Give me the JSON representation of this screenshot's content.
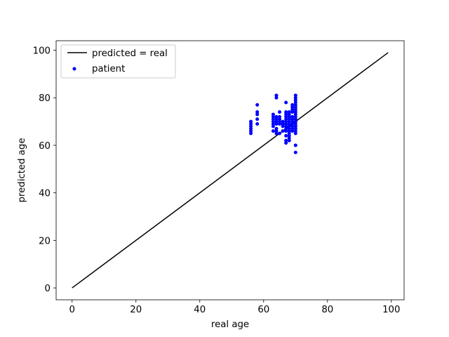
{
  "chart_data": {
    "type": "scatter",
    "title": "",
    "xlabel": "real age",
    "ylabel": "predicted age",
    "xlim": [
      -5,
      104
    ],
    "ylim": [
      -5,
      104
    ],
    "xticks": [
      0,
      20,
      40,
      60,
      80,
      100
    ],
    "yticks": [
      0,
      20,
      40,
      60,
      80,
      100
    ],
    "grid": false,
    "legend_position": "top-left",
    "series": [
      {
        "name": "predicted = real",
        "kind": "line",
        "color": "#000000",
        "x": [
          0,
          99
        ],
        "y": [
          0,
          99
        ]
      },
      {
        "name": "patient",
        "kind": "scatter",
        "color": "#0000ff",
        "x": [
          56,
          56,
          56,
          56,
          56,
          56,
          58,
          58,
          58,
          58,
          58,
          63,
          63,
          63,
          63,
          63,
          63,
          63,
          64,
          64,
          64,
          64,
          64,
          64,
          64,
          64,
          64,
          65,
          65,
          65,
          65,
          65,
          65,
          66,
          66,
          66,
          66,
          67,
          67,
          67,
          67,
          67,
          67,
          67,
          67,
          67,
          67,
          67,
          67,
          67,
          68,
          68,
          68,
          68,
          68,
          68,
          68,
          68,
          68,
          68,
          68,
          68,
          68,
          69,
          69,
          69,
          69,
          69,
          69,
          69,
          69,
          69,
          69,
          69,
          70,
          70,
          70,
          70,
          70,
          70,
          70,
          70,
          70,
          70,
          70,
          70,
          70,
          70,
          70,
          70,
          70,
          70,
          70,
          70,
          70
        ],
        "y": [
          65,
          66,
          67,
          68,
          69,
          70,
          69,
          71,
          73,
          74,
          77,
          66,
          68,
          69,
          70,
          71,
          72,
          73,
          65,
          66,
          67,
          69,
          70,
          71,
          72,
          80,
          81,
          65,
          69,
          70,
          71,
          72,
          74,
          66,
          68,
          69,
          70,
          61,
          62,
          64,
          66,
          67,
          68,
          69,
          70,
          71,
          72,
          73,
          74,
          78,
          62,
          63,
          64,
          65,
          66,
          67,
          68,
          69,
          70,
          71,
          72,
          73,
          74,
          66,
          67,
          68,
          69,
          70,
          71,
          72,
          74,
          75,
          76,
          77,
          57,
          60,
          65,
          66,
          67,
          68,
          69,
          70,
          71,
          72,
          73,
          74,
          75,
          76,
          77,
          78,
          79,
          80,
          81,
          68,
          70
        ]
      }
    ]
  },
  "colors": {
    "line": "#000000",
    "points": "#0000ff",
    "legend_border": "#cccccc",
    "background": "#ffffff"
  }
}
